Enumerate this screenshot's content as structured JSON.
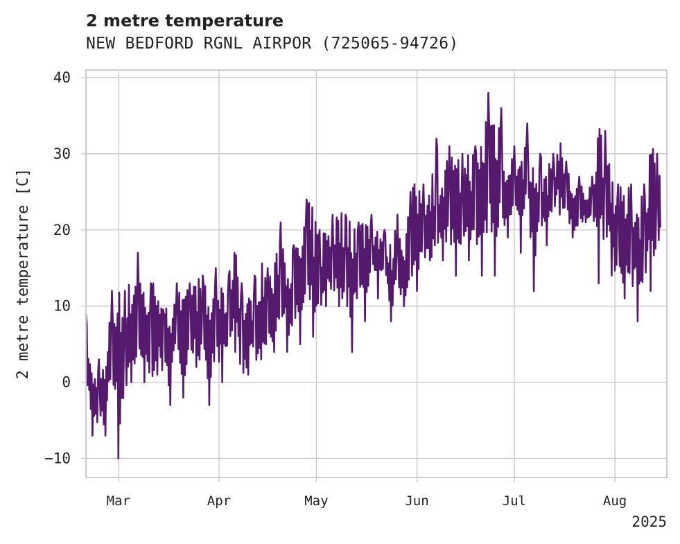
{
  "chart_data": {
    "type": "line",
    "title": "2 metre temperature",
    "subtitle": "NEW BEDFORD RGNL AIRPOR (725065-94726)",
    "ylabel": "2 metre temperature [C]",
    "xlabel": "",
    "ylim": [
      -12.5,
      41
    ],
    "xlim": [
      "2025-02-19",
      "2025-08-17"
    ],
    "yticks": [
      -10,
      0,
      10,
      20,
      30,
      40
    ],
    "ytick_labels": [
      "−10",
      "0",
      "10",
      "20",
      "30",
      "40"
    ],
    "xticks": [
      "2025-03-01",
      "2025-04-01",
      "2025-05-01",
      "2025-06-01",
      "2025-07-01",
      "2025-08-01"
    ],
    "xtick_labels": [
      "Mar",
      "Apr",
      "May",
      "Jun",
      "Jul",
      "Aug"
    ],
    "x_offset_label": "2025",
    "grid": true,
    "line_color": "#551a6e",
    "series": [
      {
        "x": [
          "2025-02-19",
          "2025-02-21",
          "2025-02-23",
          "2025-02-25",
          "2025-02-27",
          "2025-03-01",
          "2025-03-03",
          "2025-03-05",
          "2025-03-07",
          "2025-03-09",
          "2025-03-11",
          "2025-03-13",
          "2025-03-15",
          "2025-03-17",
          "2025-03-19",
          "2025-03-21",
          "2025-03-23",
          "2025-03-25",
          "2025-03-27",
          "2025-03-29",
          "2025-03-31",
          "2025-04-02",
          "2025-04-04",
          "2025-04-06",
          "2025-04-08",
          "2025-04-10",
          "2025-04-12",
          "2025-04-14",
          "2025-04-16",
          "2025-04-18",
          "2025-04-20",
          "2025-04-22",
          "2025-04-24",
          "2025-04-26",
          "2025-04-28",
          "2025-04-30",
          "2025-05-02",
          "2025-05-04",
          "2025-05-06",
          "2025-05-08",
          "2025-05-10",
          "2025-05-12",
          "2025-05-14",
          "2025-05-16",
          "2025-05-18",
          "2025-05-20",
          "2025-05-22",
          "2025-05-24",
          "2025-05-26",
          "2025-05-28",
          "2025-05-30",
          "2025-06-01",
          "2025-06-03",
          "2025-06-05",
          "2025-06-07",
          "2025-06-09",
          "2025-06-11",
          "2025-06-13",
          "2025-06-15",
          "2025-06-17",
          "2025-06-19",
          "2025-06-21",
          "2025-06-23",
          "2025-06-25",
          "2025-06-27",
          "2025-06-29",
          "2025-07-01",
          "2025-07-03",
          "2025-07-05",
          "2025-07-07",
          "2025-07-09",
          "2025-07-11",
          "2025-07-13",
          "2025-07-15",
          "2025-07-17",
          "2025-07-19",
          "2025-07-21",
          "2025-07-23",
          "2025-07-25",
          "2025-07-27",
          "2025-07-29",
          "2025-07-31",
          "2025-08-02",
          "2025-08-04",
          "2025-08-06",
          "2025-08-08",
          "2025-08-10",
          "2025-08-12",
          "2025-08-14",
          "2025-08-15"
        ],
        "y_min": [
          -1,
          -7,
          -8,
          -7,
          -1,
          -10,
          -6,
          0,
          -3,
          0,
          -3,
          1,
          -1,
          -3,
          3,
          -2,
          2,
          2,
          -1,
          -3,
          0,
          0,
          2,
          4,
          -3,
          1,
          0,
          3,
          2,
          4,
          6,
          4,
          5,
          5,
          7,
          6,
          3,
          10,
          7,
          10,
          8,
          4,
          9,
          8,
          12,
          11,
          12,
          8,
          9,
          10,
          8,
          12,
          14,
          16,
          10,
          16,
          15,
          14,
          12,
          16,
          15,
          14,
          15,
          14,
          17,
          19,
          22,
          17,
          21,
          12,
          18,
          18,
          20,
          22,
          20,
          19,
          18,
          21,
          21,
          13,
          16,
          14,
          8,
          11,
          10,
          8,
          9,
          12,
          13,
          20
        ],
        "y_max": [
          9,
          1,
          3,
          2,
          12,
          13,
          12,
          14,
          17,
          13,
          13,
          16,
          9,
          12,
          13,
          11,
          13,
          14,
          14,
          11,
          15,
          12,
          14,
          21,
          13,
          11,
          14,
          16,
          15,
          15,
          21,
          17,
          18,
          19,
          24,
          23,
          20,
          21,
          22,
          23,
          22,
          24,
          21,
          23,
          22,
          21,
          20,
          18,
          22,
          19,
          25,
          27,
          26,
          26,
          32,
          28,
          31,
          29,
          30,
          31,
          31,
          33,
          38,
          37,
          36,
          28,
          31,
          29,
          34,
          28,
          30,
          28,
          30,
          32,
          29,
          26,
          27,
          24,
          27,
          35,
          33,
          29,
          26,
          25,
          26,
          25,
          26,
          33,
          30,
          29
        ]
      }
    ]
  }
}
